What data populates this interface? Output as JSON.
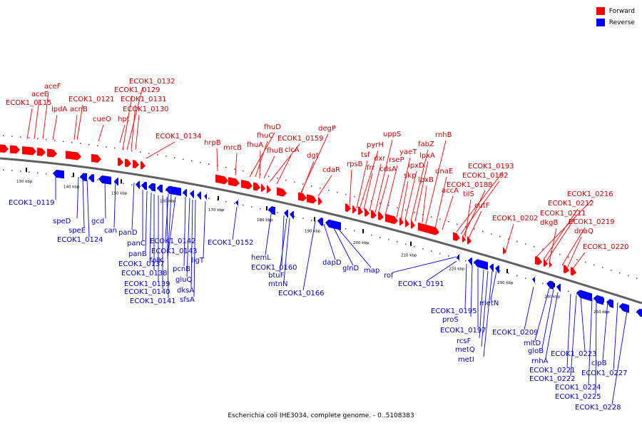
{
  "caption": "Escherichia coli IHE3034, complete genome. - 0..5108383",
  "legend": {
    "forward": {
      "label": "Forward",
      "color": "#ff0000"
    },
    "reverse": {
      "label": "Reverse",
      "color": "#0000ff"
    }
  },
  "colors": {
    "backbone": "#808080",
    "forward": "#ff0000",
    "reverse": "#0000ff",
    "forward_label": "#cc0000",
    "reverse_label": "#0000cc"
  },
  "ticks": [
    "130 kbp",
    "140 kbp",
    "150 kbp",
    "160 kbp",
    "170 kbp",
    "180 kbp",
    "190 kbp",
    "200 kbp",
    "210 kbp",
    "220 kbp",
    "230 kbp",
    "240 kbp",
    "250 kbp"
  ],
  "forward_labels": [
    "aceF",
    "aceE",
    "ECOK1_0115",
    "lpdA",
    "acnB",
    "ECOK1_0121",
    "cueO",
    "hpt",
    "ECOK1_0132",
    "ECOK1_0129",
    "ECOK1_0131",
    "ECOK1_0130",
    "ECOK1_0134",
    "hrpB",
    "mrcB",
    "fhuD",
    "fhuC",
    "fhuA",
    "fhuB",
    "ECOK1_0159",
    "clcA",
    "degP",
    "dgt",
    "cdaR",
    "rpsB",
    "tsf",
    "pyrH",
    "frr",
    "dxr",
    "uppS",
    "cdsA",
    "rseP",
    "yaeT",
    "skp",
    "lpxD",
    "fabZ",
    "lpxA",
    "lpxB",
    "rnhB",
    "dnaE",
    "accA",
    "ECOK1_0193",
    "ECOK1_0192",
    "ECOK1_0188",
    "tilS",
    "cutF",
    "ECOK1_0202",
    "ECOK1_0216",
    "ECOK1_0212",
    "ECOK1_0211",
    "dkgB",
    "ECOK1_0219",
    "dnaQ",
    "ECOK1_0220"
  ],
  "reverse_labels": [
    "ECOK1_0119",
    "speD",
    "speE",
    "ECOK1_0124",
    "gcd",
    "can",
    "panD",
    "panC",
    "panB",
    "ECOK1_0142",
    "ECOK1_0143",
    "ECOK1_0137",
    "ECOK1_0138",
    "ECOK1_0139",
    "ECOK1_0140",
    "ECOK1_0141",
    "folK",
    "pcnB",
    "gluQ",
    "dksA",
    "sfsA",
    "ligT",
    "ECOK1_0152",
    "hemL",
    "ECOK1_0160",
    "btuF",
    "mtnN",
    "ECOK1_0166",
    "dapD",
    "glnD",
    "map",
    "rof",
    "ECOK1_0191",
    "ECOK1_0195",
    "proS",
    "ECOK1_0197",
    "rcsF",
    "metQ",
    "metI",
    "metN",
    "ECOK1_0209",
    "mltD",
    "gloB",
    "rnhA",
    "ECOK1_0221",
    "ECOK1_0222",
    "ECOK1_0223",
    "ECOK1_0224",
    "ECOK1_0225",
    "clpB",
    "ECOK1_0227",
    "ECOK1_0228"
  ]
}
